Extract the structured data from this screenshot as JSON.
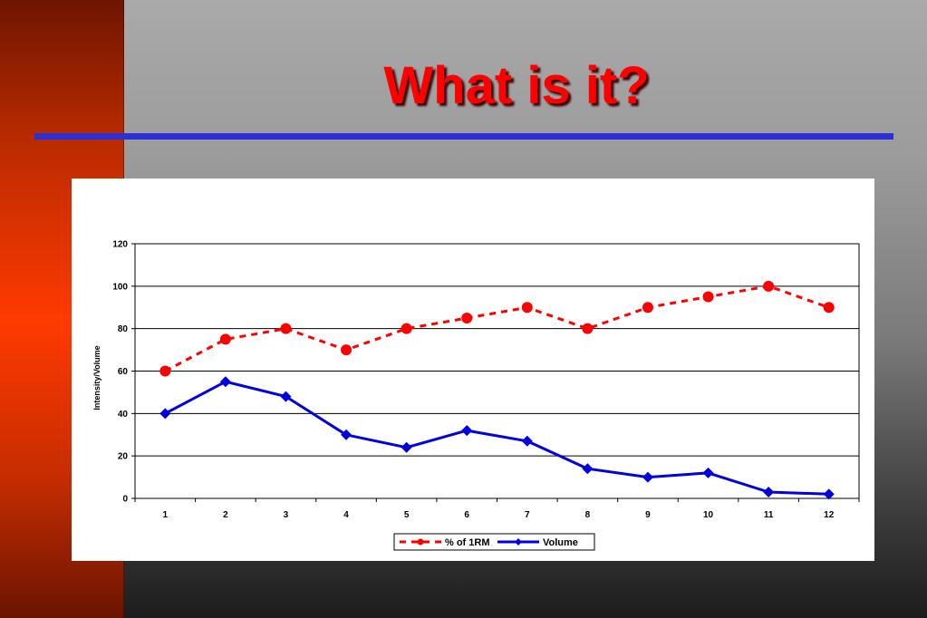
{
  "slide": {
    "title": "What is it?"
  },
  "colors": {
    "title": "#ff0000",
    "rule": "#2b2fd6",
    "left_band": "#ff3a00",
    "series_1RM": "#ff0000",
    "series_volume": "#0000e0"
  },
  "chart_data": {
    "type": "line",
    "title": "",
    "xlabel": "",
    "ylabel": "Intensity/Volume",
    "x": [
      "1",
      "2",
      "3",
      "4",
      "5",
      "6",
      "7",
      "8",
      "9",
      "10",
      "11",
      "12"
    ],
    "ylim": [
      0,
      120
    ],
    "yticks": [
      "0",
      "20",
      "40",
      "60",
      "80",
      "100",
      "120"
    ],
    "grid": true,
    "legend_position": "bottom",
    "series": [
      {
        "name": "% of 1RM",
        "values": [
          60,
          75,
          80,
          70,
          80,
          85,
          90,
          80,
          90,
          95,
          100,
          90
        ],
        "color": "#ff0000",
        "line": "dashed",
        "marker": "circle"
      },
      {
        "name": "Volume",
        "values": [
          40,
          55,
          48,
          30,
          24,
          32,
          27,
          14,
          10,
          12,
          3,
          2
        ],
        "color": "#0000e0",
        "line": "solid",
        "marker": "diamond"
      }
    ]
  }
}
